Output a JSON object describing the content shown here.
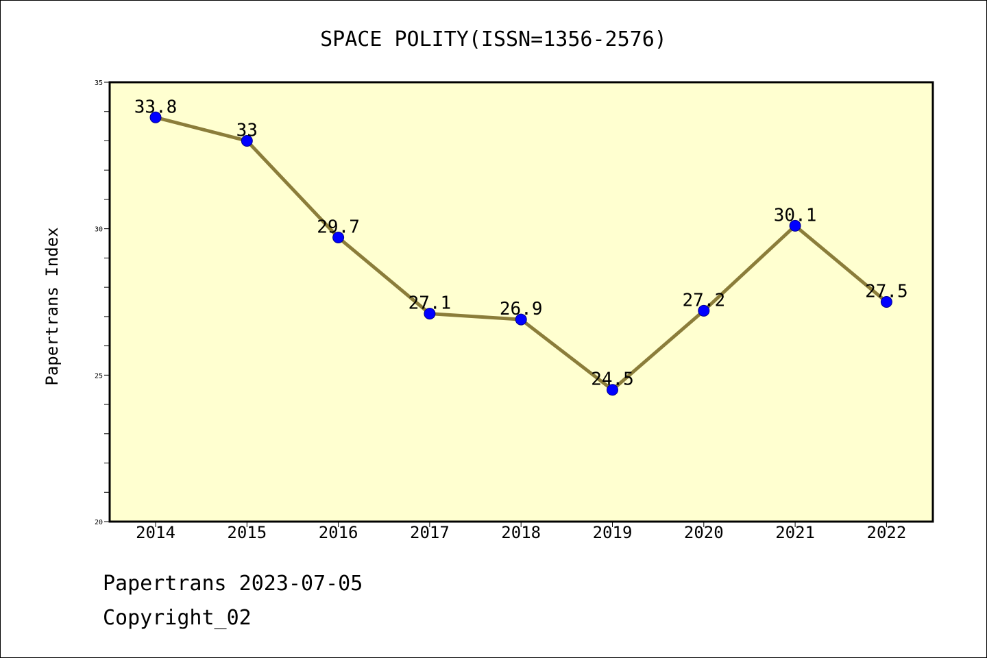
{
  "chart_data": {
    "type": "line",
    "title": "SPACE POLITY(ISSN=1356-2576)",
    "xlabel": "",
    "ylabel": "Papertrans Index",
    "categories": [
      "2014",
      "2015",
      "2016",
      "2017",
      "2018",
      "2019",
      "2020",
      "2021",
      "2022"
    ],
    "values": [
      33.8,
      33,
      29.7,
      27.1,
      26.9,
      24.5,
      27.2,
      30.1,
      27.5
    ],
    "data_labels": [
      "33.8",
      "33",
      "29.7",
      "27.1",
      "26.9",
      "24.5",
      "27.2",
      "30.1",
      "27.5"
    ],
    "ylim": [
      20,
      35
    ],
    "y_ticks": [
      "20",
      "25",
      "30",
      "35"
    ],
    "grid": false,
    "legend": "none",
    "colors": {
      "plot_background": "#FFFFD0",
      "line": "#8B7D3A",
      "marker": "#0000FF"
    }
  },
  "footer": {
    "date_line": "Papertrans 2023-07-05",
    "copyright": "Copyright_02"
  }
}
